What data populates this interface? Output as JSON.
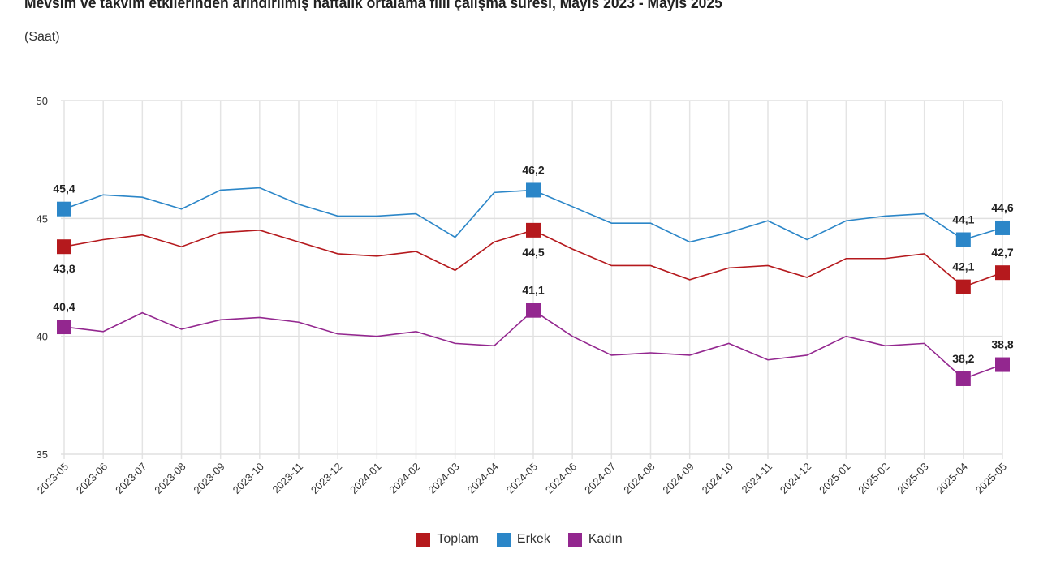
{
  "chart_data": {
    "type": "line",
    "title": "Mevsim ve takvim etkilerinden arındırılmış haftalık ortalama fiili çalışma süresi, Mayıs 2023 - Mayıs 2025",
    "subtitle": "(Saat)",
    "xlabel": "",
    "ylabel": "",
    "ylim": [
      35,
      50
    ],
    "yticks": [
      "35",
      "40",
      "45",
      "50"
    ],
    "grid": true,
    "legend_placement": "bottom",
    "categories": [
      "2023-05",
      "2023-06",
      "2023-07",
      "2023-08",
      "2023-09",
      "2023-10",
      "2023-11",
      "2023-12",
      "2024-01",
      "2024-02",
      "2024-03",
      "2024-04",
      "2024-05",
      "2024-06",
      "2024-07",
      "2024-08",
      "2024-09",
      "2024-10",
      "2024-11",
      "2024-12",
      "2025-01",
      "2025-02",
      "2025-03",
      "2025-04",
      "2025-05"
    ],
    "labeled_points": [
      0,
      12,
      23,
      24
    ],
    "series": [
      {
        "name": "Toplam",
        "color": "#b5191d",
        "values": [
          43.8,
          44.1,
          44.3,
          43.8,
          44.4,
          44.5,
          44.0,
          43.5,
          43.4,
          43.6,
          42.8,
          44.0,
          44.5,
          43.7,
          43.0,
          43.0,
          42.4,
          42.9,
          43.0,
          42.5,
          43.3,
          43.3,
          43.5,
          42.1,
          42.7
        ],
        "labels": [
          "43,8",
          "44,5",
          "42,1",
          "42,7"
        ]
      },
      {
        "name": "Erkek",
        "color": "#2b86c8",
        "values": [
          45.4,
          46.0,
          45.9,
          45.4,
          46.2,
          46.3,
          45.6,
          45.1,
          45.1,
          45.2,
          44.2,
          46.1,
          46.2,
          45.5,
          44.8,
          44.8,
          44.0,
          44.4,
          44.9,
          44.1,
          44.9,
          45.1,
          45.2,
          44.1,
          44.6
        ],
        "labels": [
          "45,4",
          "46,2",
          "44,1",
          "44,6"
        ]
      },
      {
        "name": "Kadın",
        "color": "#93278f",
        "values": [
          40.4,
          40.2,
          41.0,
          40.3,
          40.7,
          40.8,
          40.6,
          40.1,
          40.0,
          40.2,
          39.7,
          39.6,
          41.1,
          40.0,
          39.2,
          39.3,
          39.2,
          39.7,
          39.0,
          39.2,
          40.0,
          39.6,
          39.7,
          38.2,
          38.8
        ],
        "labels": [
          "40,4",
          "41,1",
          "38,2",
          "38,8"
        ]
      }
    ]
  }
}
